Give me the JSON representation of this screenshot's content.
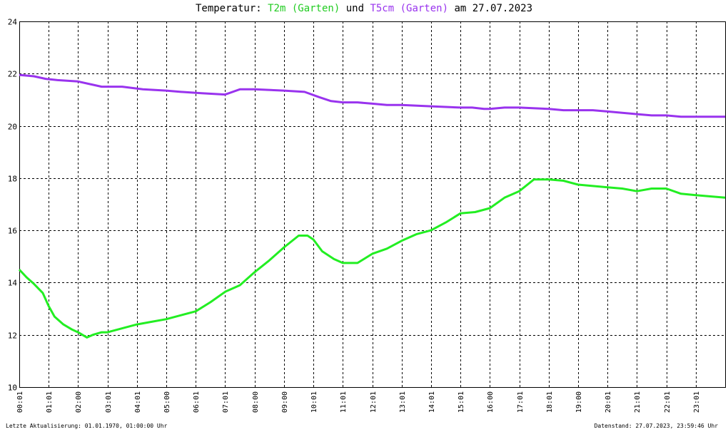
{
  "title": {
    "prefix": "Temperatur: ",
    "s1": "T2m (Garten)",
    "mid": " und ",
    "s2": "T5cm (Garten)",
    "suffix": " am 27.07.2023"
  },
  "footer": {
    "left": "Letzte Aktualisierung: 01.01.1970, 01:00:00 Uhr",
    "right": "Datenstand: 27.07.2023, 23:59:46 Uhr"
  },
  "colors": {
    "t2m": "#22ee22",
    "t5cm": "#9933ee",
    "grid": "#000000"
  },
  "chart_data": {
    "type": "line",
    "title": "Temperatur: T2m (Garten) und T5cm (Garten) am 27.07.2023",
    "xlabel": "",
    "ylabel": "",
    "xlim": [
      0,
      24
    ],
    "ylim": [
      10,
      24
    ],
    "grid": true,
    "y_ticks": [
      "10",
      "12",
      "14",
      "16",
      "18",
      "20",
      "22",
      "24"
    ],
    "x_ticks": [
      "00:01",
      "01:01",
      "02:00",
      "03:01",
      "04:01",
      "05:00",
      "06:01",
      "07:01",
      "08:00",
      "09:00",
      "10:01",
      "11:01",
      "12:01",
      "13:01",
      "14:01",
      "15:01",
      "16:00",
      "17:01",
      "18:01",
      "19:00",
      "20:01",
      "21:01",
      "22:01",
      "23:01"
    ],
    "series": [
      {
        "name": "T2m (Garten)",
        "x": [
          0,
          0.25,
          0.5,
          0.8,
          1.0,
          1.2,
          1.5,
          1.8,
          2.0,
          2.3,
          2.5,
          2.8,
          3.0,
          3.5,
          4.0,
          4.5,
          5.0,
          5.5,
          6.0,
          6.5,
          7.0,
          7.5,
          8.0,
          8.5,
          9.0,
          9.5,
          9.8,
          10.0,
          10.3,
          10.7,
          11.0,
          11.5,
          12.0,
          12.5,
          13.0,
          13.5,
          14.0,
          14.5,
          15.0,
          15.5,
          16.0,
          16.5,
          17.0,
          17.5,
          18.0,
          18.5,
          19.0,
          19.5,
          20.0,
          20.5,
          21.0,
          21.5,
          22.0,
          22.5,
          23.0,
          23.5,
          24.0
        ],
        "y": [
          14.5,
          14.2,
          13.95,
          13.6,
          13.1,
          12.7,
          12.4,
          12.2,
          12.1,
          11.9,
          12.0,
          12.1,
          12.1,
          12.25,
          12.4,
          12.5,
          12.6,
          12.75,
          12.9,
          13.25,
          13.65,
          13.9,
          14.4,
          14.85,
          15.35,
          15.8,
          15.8,
          15.65,
          15.2,
          14.9,
          14.75,
          14.75,
          15.1,
          15.3,
          15.6,
          15.85,
          16.0,
          16.3,
          16.65,
          16.7,
          16.85,
          17.25,
          17.5,
          17.95,
          17.95,
          17.9,
          17.75,
          17.7,
          17.65,
          17.6,
          17.5,
          17.6,
          17.6,
          17.4,
          17.35,
          17.3,
          17.25
        ]
      },
      {
        "name": "T5cm (Garten)",
        "x": [
          0,
          0.5,
          0.9,
          1.3,
          2.0,
          2.8,
          3.5,
          4.2,
          5.0,
          5.5,
          6.2,
          7.0,
          7.5,
          8.0,
          9.0,
          9.7,
          10.2,
          10.6,
          11.0,
          11.5,
          12.0,
          12.5,
          13.0,
          14.0,
          15.0,
          15.4,
          15.8,
          16.0,
          16.5,
          17.0,
          18.0,
          18.5,
          19.0,
          19.5,
          20.0,
          20.5,
          21.0,
          21.5,
          22.0,
          22.5,
          23.0,
          23.5,
          24.0
        ],
        "y": [
          21.95,
          21.9,
          21.8,
          21.75,
          21.7,
          21.5,
          21.5,
          21.4,
          21.35,
          21.3,
          21.25,
          21.2,
          21.4,
          21.4,
          21.35,
          21.3,
          21.1,
          20.95,
          20.9,
          20.9,
          20.85,
          20.8,
          20.8,
          20.75,
          20.7,
          20.7,
          20.65,
          20.65,
          20.7,
          20.7,
          20.65,
          20.6,
          20.6,
          20.6,
          20.55,
          20.5,
          20.45,
          20.4,
          20.4,
          20.35,
          20.35,
          20.35,
          20.35
        ]
      }
    ]
  }
}
